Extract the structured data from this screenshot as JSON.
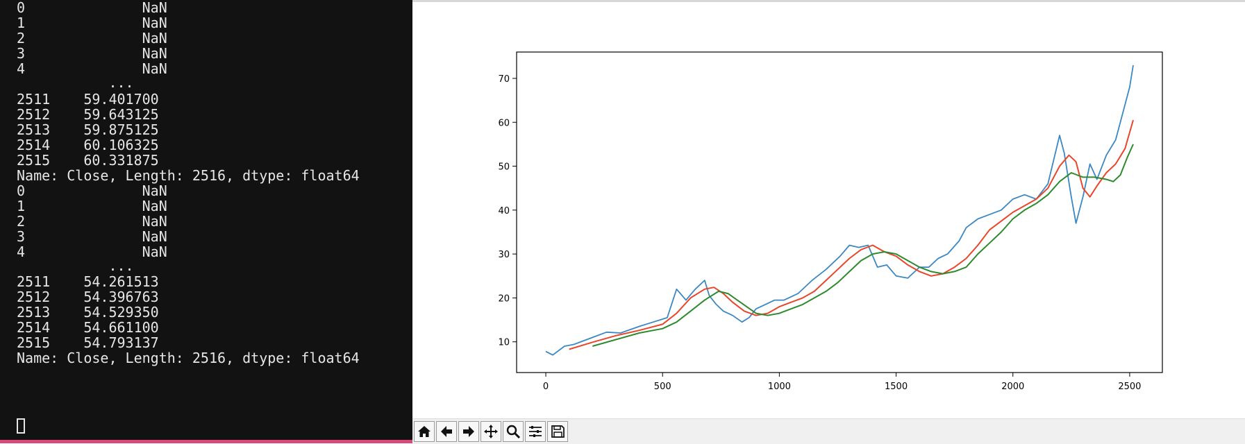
{
  "terminal": {
    "lines": [
      "0              NaN",
      "1              NaN",
      "2              NaN",
      "3              NaN",
      "4              NaN",
      "           ...",
      "2511    59.401700",
      "2512    59.643125",
      "2513    59.875125",
      "2514    60.106325",
      "2515    60.331875",
      "Name: Close, Length: 2516, dtype: float64",
      "0              NaN",
      "1              NaN",
      "2              NaN",
      "3              NaN",
      "4              NaN",
      "           ...",
      "2511    54.261513",
      "2512    54.396763",
      "2513    54.529350",
      "2514    54.661100",
      "2515    54.793137",
      "Name: Close, Length: 2516, dtype: float64"
    ]
  },
  "toolbar": {
    "buttons": [
      {
        "icon": "home-icon"
      },
      {
        "icon": "back-arrow-icon"
      },
      {
        "icon": "forward-arrow-icon"
      },
      {
        "icon": "pan-icon"
      },
      {
        "icon": "zoom-icon"
      },
      {
        "icon": "configure-subplots-icon"
      },
      {
        "icon": "save-icon"
      }
    ]
  },
  "chart_data": {
    "type": "line",
    "title": "",
    "xlabel": "",
    "ylabel": "",
    "xlim": [
      -125,
      2640
    ],
    "ylim": [
      3,
      76
    ],
    "xticks": [
      0,
      500,
      1000,
      1500,
      2000,
      2500
    ],
    "yticks": [
      10,
      20,
      30,
      40,
      50,
      60,
      70
    ],
    "grid": false,
    "series": [
      {
        "color": "#3b87c2",
        "x": [
          0,
          30,
          80,
          120,
          200,
          260,
          320,
          400,
          460,
          520,
          560,
          600,
          640,
          680,
          700,
          730,
          760,
          800,
          840,
          870,
          900,
          940,
          980,
          1020,
          1080,
          1140,
          1200,
          1260,
          1300,
          1340,
          1380,
          1420,
          1460,
          1500,
          1550,
          1600,
          1640,
          1680,
          1720,
          1770,
          1800,
          1850,
          1900,
          1950,
          2000,
          2050,
          2100,
          2150,
          2200,
          2220,
          2250,
          2270,
          2300,
          2330,
          2360,
          2400,
          2440,
          2470,
          2500,
          2515
        ],
        "values": [
          7.8,
          7.0,
          9.0,
          9.4,
          11.0,
          12.2,
          12.0,
          13.5,
          14.5,
          15.5,
          22.0,
          19.5,
          22.0,
          24.0,
          20.5,
          18.5,
          17.0,
          16.0,
          14.5,
          15.5,
          17.5,
          18.5,
          19.5,
          19.5,
          21.0,
          24.0,
          26.5,
          29.5,
          32.0,
          31.5,
          32.0,
          27.0,
          27.5,
          25.0,
          24.5,
          27.0,
          27.0,
          29.0,
          30.0,
          33.0,
          36.0,
          38.0,
          39.0,
          40.0,
          42.5,
          43.5,
          42.5,
          46.0,
          57.0,
          53.0,
          43.0,
          37.0,
          43.0,
          50.5,
          47.0,
          52.5,
          56.0,
          62.0,
          68.0,
          73.0
        ]
      },
      {
        "color": "#e8462a",
        "x": [
          100,
          200,
          300,
          400,
          500,
          560,
          620,
          680,
          720,
          760,
          800,
          850,
          900,
          950,
          1000,
          1050,
          1100,
          1150,
          1200,
          1250,
          1300,
          1350,
          1400,
          1450,
          1500,
          1550,
          1600,
          1650,
          1700,
          1750,
          1800,
          1850,
          1900,
          1950,
          2000,
          2050,
          2100,
          2150,
          2200,
          2240,
          2270,
          2300,
          2330,
          2360,
          2400,
          2440,
          2480,
          2515
        ],
        "values": [
          8.3,
          9.9,
          11.4,
          12.6,
          14.0,
          16.5,
          20.0,
          22.0,
          22.4,
          21.0,
          19.0,
          17.0,
          16.0,
          16.5,
          18.0,
          19.0,
          20.0,
          21.5,
          24.0,
          26.5,
          29.0,
          31.0,
          32.0,
          30.5,
          29.5,
          27.5,
          26.0,
          25.0,
          25.5,
          27.0,
          29.0,
          32.0,
          35.5,
          37.5,
          39.5,
          41.0,
          42.5,
          45.0,
          50.0,
          52.5,
          51.0,
          45.0,
          43.0,
          45.5,
          48.5,
          50.5,
          54.0,
          60.5
        ]
      },
      {
        "color": "#2d8a2d",
        "x": [
          200,
          300,
          400,
          500,
          560,
          620,
          680,
          740,
          780,
          820,
          860,
          900,
          950,
          1000,
          1050,
          1100,
          1150,
          1200,
          1250,
          1300,
          1350,
          1400,
          1450,
          1500,
          1550,
          1600,
          1650,
          1700,
          1750,
          1800,
          1850,
          1900,
          1950,
          2000,
          2050,
          2100,
          2150,
          2200,
          2250,
          2300,
          2350,
          2400,
          2430,
          2460,
          2490,
          2515
        ],
        "values": [
          9.0,
          10.5,
          12.0,
          13.0,
          14.5,
          17.0,
          19.5,
          21.5,
          21.0,
          19.5,
          18.0,
          16.5,
          16.0,
          16.5,
          17.5,
          18.5,
          20.0,
          21.5,
          23.5,
          26.0,
          28.5,
          30.0,
          30.5,
          30.0,
          28.5,
          27.0,
          26.0,
          25.5,
          26.0,
          27.0,
          30.0,
          32.5,
          35.0,
          38.0,
          40.0,
          41.5,
          43.5,
          46.5,
          48.5,
          47.5,
          47.5,
          47.0,
          46.5,
          48.0,
          52.0,
          55.0
        ]
      }
    ]
  }
}
